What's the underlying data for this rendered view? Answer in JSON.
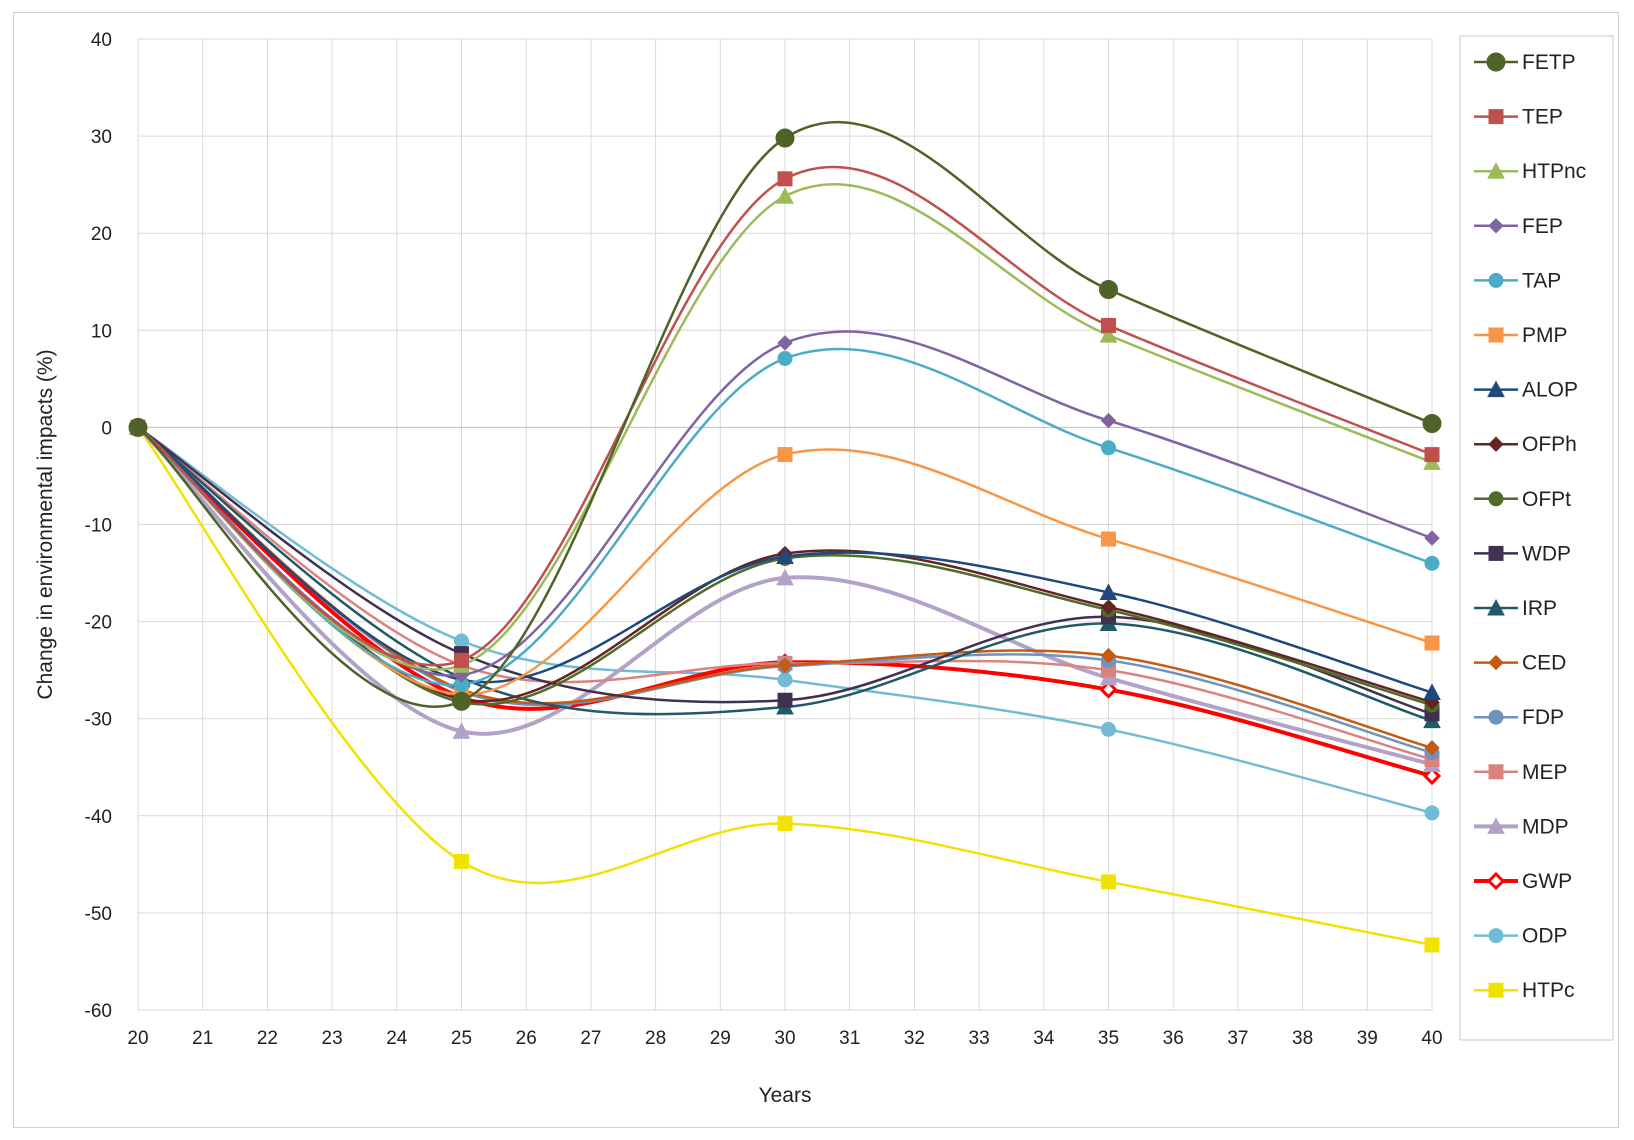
{
  "chart_data": {
    "type": "line",
    "title": "",
    "xlabel": "Years",
    "ylabel": "Change in environmental impacts (%)",
    "xlim": [
      20,
      40
    ],
    "ylim": [
      -60,
      40
    ],
    "x_ticks": [
      20,
      21,
      22,
      23,
      24,
      25,
      26,
      27,
      28,
      29,
      30,
      31,
      32,
      33,
      34,
      35,
      36,
      37,
      38,
      39,
      40
    ],
    "y_ticks": [
      40,
      30,
      20,
      10,
      0,
      -10,
      -20,
      -30,
      -40,
      -50,
      -60
    ],
    "grid": true,
    "smooth": true,
    "legend_position": "right",
    "x": [
      20,
      25,
      30,
      35,
      40
    ],
    "series": [
      {
        "name": "FETP",
        "color": "#4f6228",
        "marker": "circle",
        "values": [
          0,
          -28.2,
          29.8,
          14.2,
          0.4
        ]
      },
      {
        "name": "TEP",
        "color": "#c0504d",
        "marker": "square",
        "values": [
          0,
          -24.0,
          25.6,
          10.5,
          -2.8
        ]
      },
      {
        "name": "HTPnc",
        "color": "#9bbb59",
        "marker": "triangle",
        "values": [
          0,
          -24.5,
          23.8,
          9.5,
          -3.6
        ]
      },
      {
        "name": "FEP",
        "color": "#8064a2",
        "marker": "diamond",
        "values": [
          0,
          -25.5,
          8.7,
          0.7,
          -11.4
        ]
      },
      {
        "name": "TAP",
        "color": "#4bacc6",
        "marker": "circle",
        "values": [
          0,
          -26.5,
          7.1,
          -2.1,
          -14.0
        ]
      },
      {
        "name": "PMP",
        "color": "#f79646",
        "marker": "square",
        "values": [
          0,
          -27.5,
          -2.8,
          -11.5,
          -22.2
        ]
      },
      {
        "name": "ALOP",
        "color": "#1f497d",
        "marker": "triangle",
        "values": [
          0,
          -26.0,
          -13.3,
          -17.0,
          -27.3
        ]
      },
      {
        "name": "OFPh",
        "color": "#632523",
        "marker": "diamond",
        "values": [
          0,
          -28.0,
          -13.0,
          -18.5,
          -28.3
        ]
      },
      {
        "name": "OFPt",
        "color": "#4e6b2a",
        "marker": "circle",
        "values": [
          0,
          -28.3,
          -13.5,
          -18.8,
          -28.6
        ]
      },
      {
        "name": "WDP",
        "color": "#403152",
        "marker": "square",
        "values": [
          0,
          -23.3,
          -28.1,
          -19.5,
          -29.5
        ]
      },
      {
        "name": "IRP",
        "color": "#215968",
        "marker": "triangle",
        "values": [
          0,
          -25.8,
          -28.8,
          -20.2,
          -30.2
        ]
      },
      {
        "name": "CED",
        "color": "#c55a11",
        "marker": "diamond",
        "values": [
          0,
          -27.0,
          -24.5,
          -23.5,
          -33.0
        ]
      },
      {
        "name": "FDP",
        "color": "#7092be",
        "marker": "circle",
        "values": [
          0,
          -27.2,
          -24.6,
          -24.0,
          -33.5
        ]
      },
      {
        "name": "MEP",
        "color": "#d9837f",
        "marker": "square",
        "values": [
          0,
          -24.5,
          -24.3,
          -25.0,
          -34.2
        ]
      },
      {
        "name": "MDP",
        "color": "#b3a2c7",
        "marker": "triangle",
        "values": [
          0,
          -31.3,
          -15.5,
          -25.8,
          -34.7
        ]
      },
      {
        "name": "GWP",
        "color": "#ff0000",
        "marker": "diamond",
        "values": [
          0,
          -27.8,
          -24.2,
          -27.0,
          -35.9
        ]
      },
      {
        "name": "ODP",
        "color": "#71bcd4",
        "marker": "circle",
        "values": [
          0,
          -22.0,
          -26.0,
          -31.1,
          -39.7
        ]
      },
      {
        "name": "HTPc",
        "color": "#f2e200",
        "marker": "square",
        "values": [
          0,
          -44.7,
          -40.8,
          -46.8,
          -53.3
        ]
      }
    ]
  }
}
